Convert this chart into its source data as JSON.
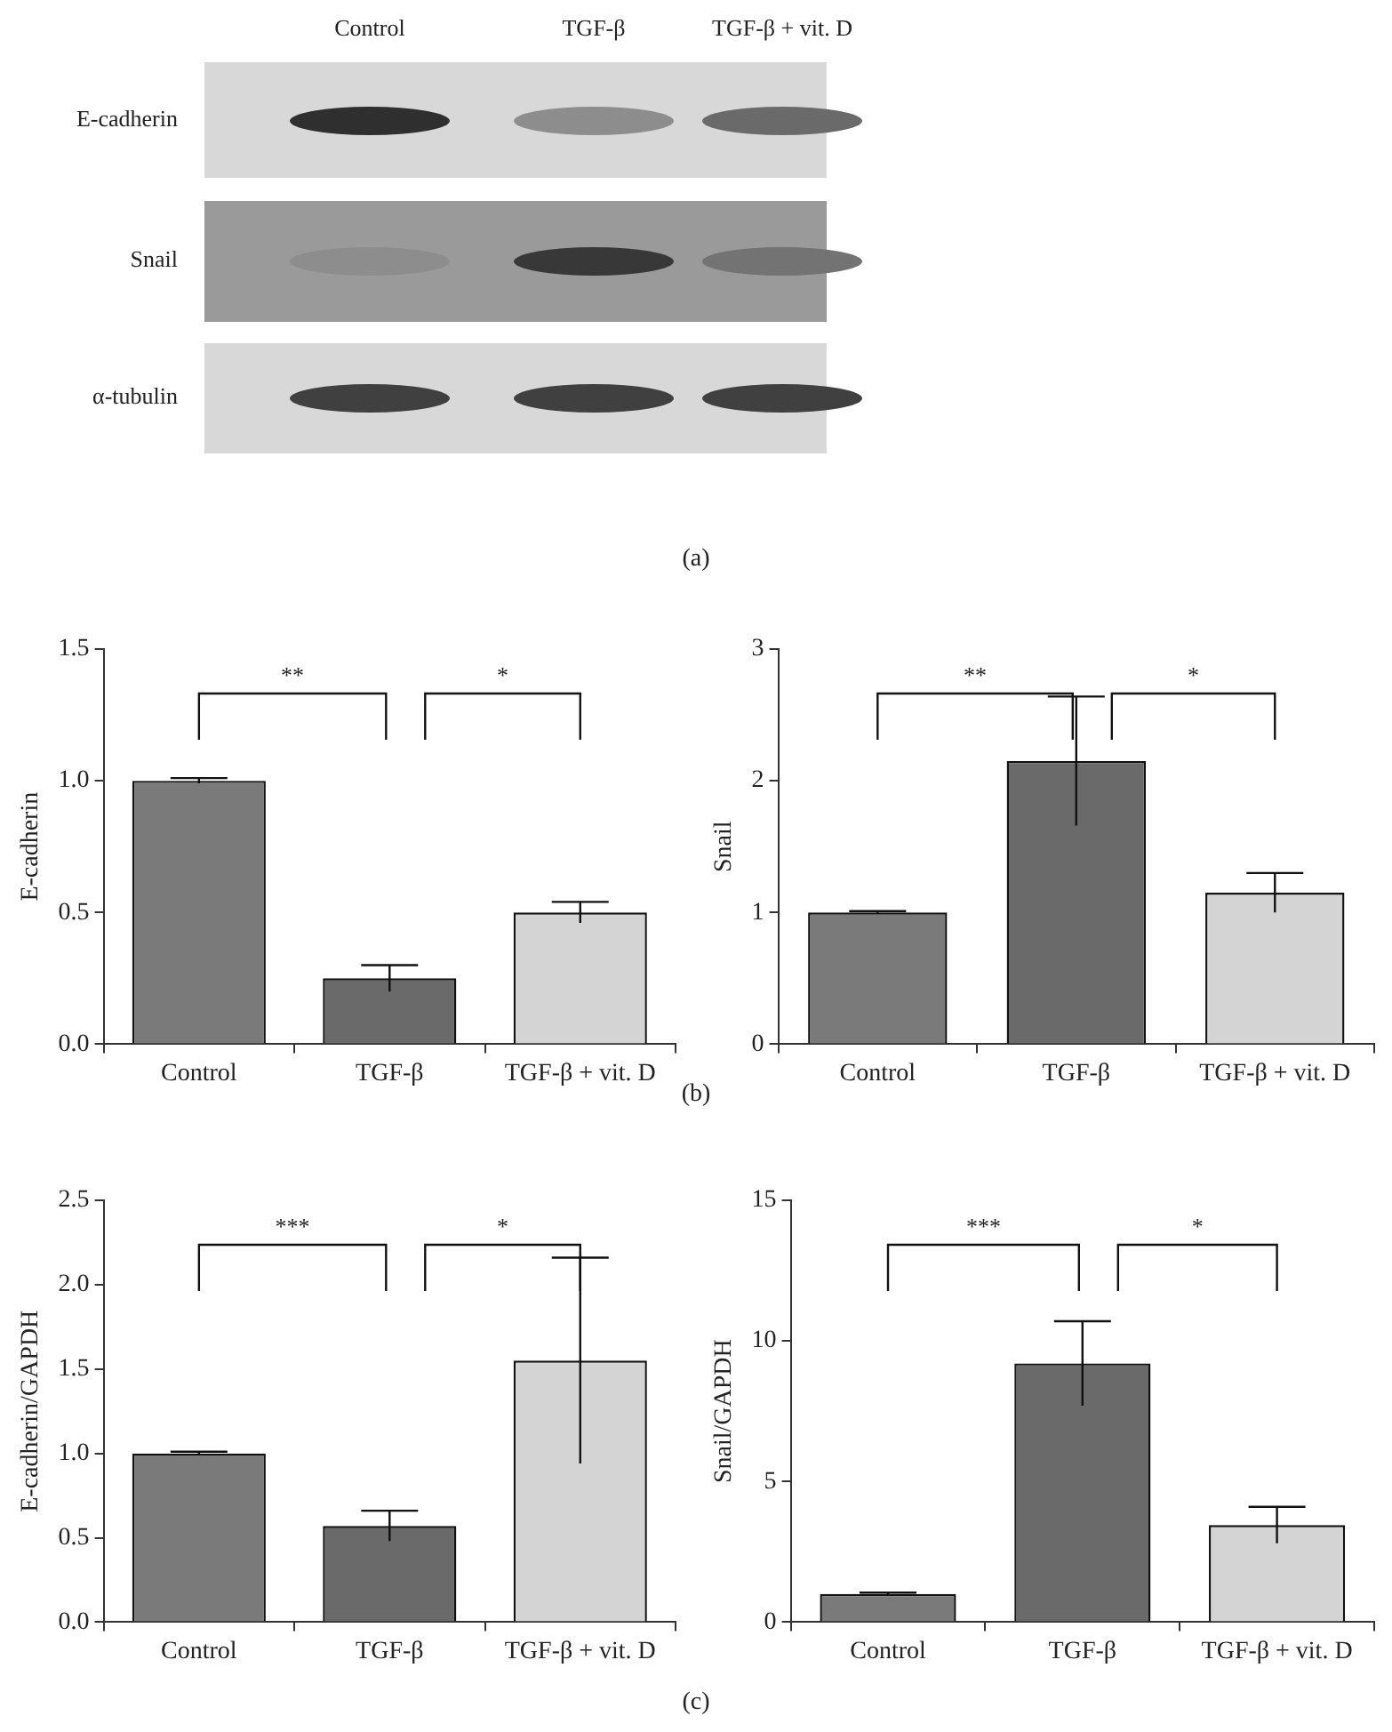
{
  "chart_data": [
    {
      "type": "other",
      "categories": [
        "Control",
        "TGF-β",
        "TGF-β + vit. D"
      ],
      "y_categories": [
        "E-cadherin",
        "Snail",
        "α-tubulin"
      ],
      "annotations": [
        "(a)"
      ]
    },
    {
      "type": "bar",
      "ylabel": "E-cadherin",
      "categories": [
        "Control",
        "TGF-β",
        "TGF-β + vit. D"
      ],
      "values": [
        1.0,
        0.25,
        0.5
      ],
      "errors": [
        0.01,
        0.05,
        0.04
      ],
      "colors": [
        "#7a7a7a",
        "#6a6a6a",
        "#d4d4d4"
      ],
      "ylim": [
        0,
        1.5
      ],
      "yticks": [
        {
          "value": 0,
          "label": "0.0"
        },
        {
          "value": 0.5,
          "label": "0.5"
        },
        {
          "value": 1,
          "label": "1.0"
        },
        {
          "value": 1.5,
          "label": "1.5"
        }
      ],
      "annotations": [
        "**",
        "*",
        "(b)"
      ]
    },
    {
      "type": "bar",
      "ylabel": "Snail",
      "categories": [
        "Control",
        "TGF-β",
        "TGF-β + vit. D"
      ],
      "values": [
        1.0,
        2.15,
        1.15
      ],
      "errors": [
        0.01,
        0.49,
        0.15
      ],
      "colors": [
        "#7a7a7a",
        "#6a6a6a",
        "#d4d4d4"
      ],
      "ylim": [
        0,
        3
      ],
      "yticks": [
        0,
        1,
        2,
        3
      ],
      "annotations": [
        "**",
        "*"
      ]
    },
    {
      "type": "bar",
      "ylabel": "E-cadherin/GAPDH",
      "categories": [
        "Control",
        "TGF-β",
        "TGF-β + vit. D"
      ],
      "values": [
        1.0,
        0.57,
        1.55
      ],
      "errors": [
        0.01,
        0.09,
        0.61
      ],
      "colors": [
        "#7a7a7a",
        "#6a6a6a",
        "#d4d4d4"
      ],
      "ylim": [
        0,
        2.5
      ],
      "yticks": [
        {
          "value": 0,
          "label": "0.0"
        },
        {
          "value": 0.5,
          "label": "0.5"
        },
        {
          "value": 1,
          "label": "1.0"
        },
        {
          "value": 1.5,
          "label": "1.5"
        },
        {
          "value": 2,
          "label": "2.0"
        },
        {
          "value": 2.5,
          "label": "2.5"
        }
      ],
      "annotations": [
        "***",
        "*",
        "(c)"
      ]
    },
    {
      "type": "bar",
      "ylabel": "Snail/GAPDH",
      "categories": [
        "Control",
        "TGF-β",
        "TGF-β + vit. D"
      ],
      "values": [
        1.0,
        9.2,
        3.45
      ],
      "errors": [
        0.05,
        1.5,
        0.65
      ],
      "colors": [
        "#7a7a7a",
        "#6a6a6a",
        "#d4d4d4"
      ],
      "ylim": [
        0,
        15
      ],
      "yticks": [
        0,
        5,
        10,
        15
      ],
      "annotations": [
        "***",
        "*"
      ]
    }
  ]
}
